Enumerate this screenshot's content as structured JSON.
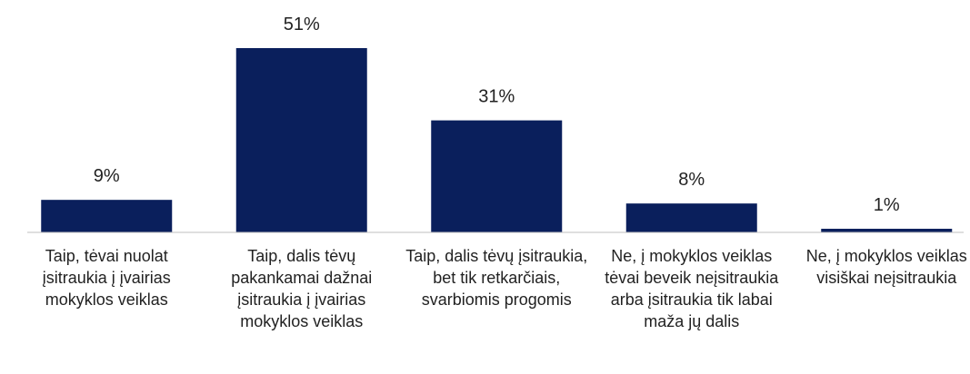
{
  "chart_data": {
    "type": "bar",
    "categories": [
      "Taip, tėvai nuolat įsitraukia į įvairias mokyklos veiklas",
      "Taip, dalis tėvų pakankamai dažnai įsitraukia į įvairias mokyklos veiklas",
      "Taip, dalis tėvų įsitraukia, bet tik retkarčiais, svarbiomis progomis",
      "Ne, į mokyklos veiklas tėvai beveik neįsitraukia arba įsitraukia tik labai maža jų dalis",
      "Ne, į mokyklos veiklas visiškai neįsitraukia"
    ],
    "values": [
      9,
      51,
      31,
      8,
      1
    ],
    "value_labels": [
      "9%",
      "51%",
      "31%",
      "8%",
      "1%"
    ],
    "color": "#0a1f5c"
  }
}
